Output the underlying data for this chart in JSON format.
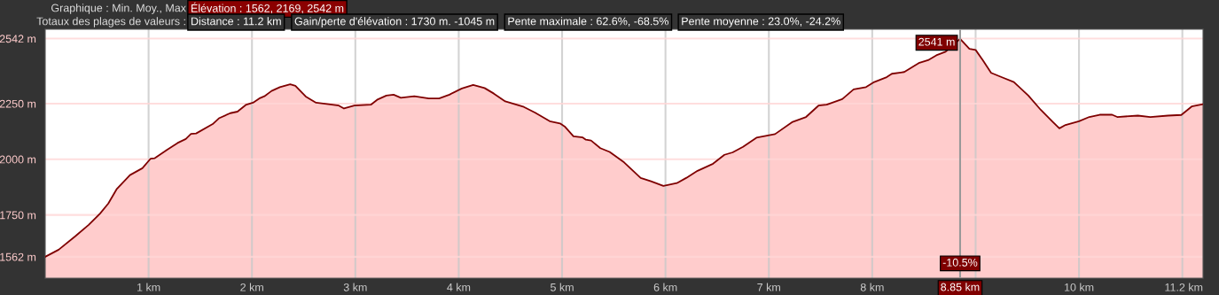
{
  "chart_data": {
    "type": "area",
    "annotations": [
      "Graphique : Min. Moy., Max",
      "Élévation : 1562, 2169, 2542 m",
      "Totaux des plages de valeurs :",
      "Distance : 11.2 km",
      "Gain/perte d'élévation : 1730 m. -1045 m",
      "Pente maximale : 62.6%, -68.5%",
      "Pente moyenne : 23.0%, -24.2%",
      {
        "text": "2541 m",
        "x": 8.85,
        "y": 2541
      },
      {
        "text": "-10.5%",
        "x": 8.85
      }
    ],
    "series": [
      {
        "color": "#7f0000",
        "x": [
          0,
          0.13,
          0.29,
          0.42,
          0.53,
          0.61,
          0.69,
          0.82,
          0.94,
          1.02,
          1.06,
          1.18,
          1.28,
          1.36,
          1.41,
          1.46,
          1.62,
          1.68,
          1.79,
          1.86,
          1.94,
          2.01,
          2.07,
          2.12,
          2.19,
          2.27,
          2.37,
          2.42,
          2.52,
          2.62,
          2.74,
          2.84,
          2.89,
          2.99,
          3.15,
          3.21,
          3.3,
          3.37,
          3.44,
          3.57,
          3.71,
          3.81,
          3.91,
          4.03,
          4.14,
          4.25,
          4.34,
          4.45,
          4.63,
          4.74,
          4.88,
          4.98,
          5.03,
          5.11,
          5.2,
          5.23,
          5.28,
          5.37,
          5.46,
          5.6,
          5.76,
          5.86,
          5.98,
          6.11,
          6.2,
          6.31,
          6.46,
          6.57,
          6.65,
          6.75,
          6.88,
          7.06,
          7.23,
          7.36,
          7.48,
          7.56,
          7.71,
          7.82,
          7.94,
          8.02,
          8.14,
          8.19,
          8.31,
          8.45,
          8.54,
          8.62,
          8.71,
          8.85,
          8.94,
          9.0,
          9.07,
          9.15,
          9.25,
          9.37,
          9.51,
          9.63,
          9.74,
          9.81,
          9.87,
          10.0,
          10.1,
          10.2,
          10.32,
          10.37,
          10.57,
          10.69,
          10.86,
          10.99,
          11.09,
          11.2
        ],
        "values": [
          1562,
          1594,
          1654,
          1705,
          1756,
          1801,
          1865,
          1929,
          1960,
          2003,
          2005,
          2043,
          2073,
          2091,
          2114,
          2116,
          2158,
          2184,
          2207,
          2214,
          2244,
          2254,
          2273,
          2283,
          2307,
          2324,
          2337,
          2330,
          2282,
          2254,
          2247,
          2241,
          2228,
          2241,
          2245,
          2267,
          2286,
          2290,
          2276,
          2283,
          2273,
          2273,
          2290,
          2318,
          2334,
          2320,
          2295,
          2260,
          2235,
          2209,
          2171,
          2161,
          2145,
          2103,
          2098,
          2088,
          2084,
          2050,
          2033,
          1986,
          1916,
          1901,
          1880,
          1893,
          1916,
          1948,
          1980,
          2020,
          2031,
          2056,
          2097,
          2113,
          2168,
          2190,
          2241,
          2245,
          2270,
          2314,
          2324,
          2347,
          2369,
          2384,
          2392,
          2432,
          2445,
          2467,
          2483,
          2541,
          2496,
          2491,
          2445,
          2388,
          2369,
          2347,
          2286,
          2222,
          2171,
          2139,
          2154,
          2171,
          2190,
          2200,
          2200,
          2190,
          2196,
          2190,
          2196,
          2199,
          2237,
          2247
        ]
      }
    ],
    "xlim": [
      0,
      11.2
    ],
    "xticks": [
      {
        "value": 1,
        "label": "1 km"
      },
      {
        "value": 2,
        "label": "2 km"
      },
      {
        "value": 3,
        "label": "3 km"
      },
      {
        "value": 4,
        "label": "4 km"
      },
      {
        "value": 5,
        "label": "5 km"
      },
      {
        "value": 6,
        "label": "6 km"
      },
      {
        "value": 7,
        "label": "7 km"
      },
      {
        "value": 8,
        "label": "8 km"
      },
      {
        "value": 9,
        "label": null
      },
      {
        "value": 10,
        "label": "10 km"
      },
      {
        "value": 11,
        "label": null
      },
      {
        "value": 11.2,
        "label": "11.2 km"
      }
    ],
    "ylim": [
      1466,
      2584
    ],
    "yticks": [
      {
        "value": 1562,
        "label": "1562 m"
      },
      {
        "value": 1750,
        "label": "1750 m"
      },
      {
        "value": 2000,
        "label": "2000 m"
      },
      {
        "value": 2250,
        "label": "2250 m"
      },
      {
        "value": 2542,
        "label": "2542 m"
      }
    ],
    "ref_lines": [
      {
        "axis": "x",
        "value": 8.85,
        "label": "8.85 km",
        "color": "#999999"
      }
    ],
    "grid": true
  }
}
